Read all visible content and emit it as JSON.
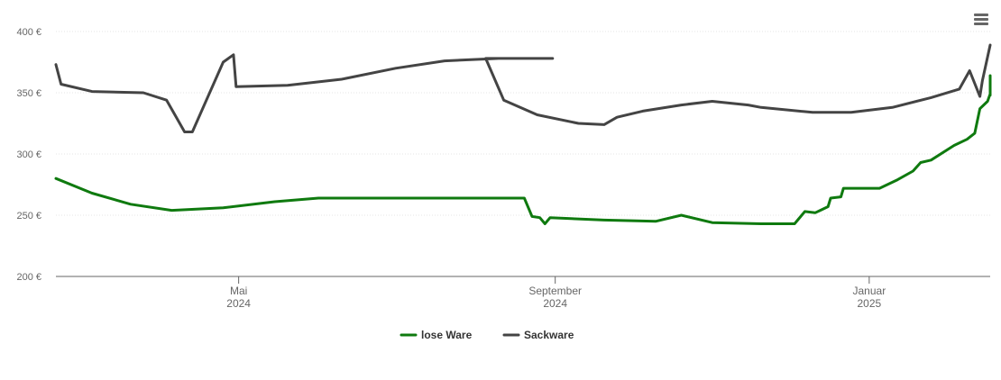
{
  "menu": {
    "icon": "hamburger-icon"
  },
  "chart_data": {
    "type": "line",
    "title": "",
    "xlabel": "",
    "ylabel": "",
    "ylim": [
      200,
      400
    ],
    "yticks": [
      {
        "value": 200,
        "label": "200 €"
      },
      {
        "value": 250,
        "label": "250 €"
      },
      {
        "value": 300,
        "label": "300 €"
      },
      {
        "value": 350,
        "label": "350 €"
      },
      {
        "value": 400,
        "label": "400 €"
      }
    ],
    "xrange": [
      "2024-02-20",
      "2025-02-17"
    ],
    "xticks": [
      {
        "date": "2024-05-01",
        "line1": "Mai",
        "line2": "2024"
      },
      {
        "date": "2024-09-01",
        "line1": "September",
        "line2": "2024"
      },
      {
        "date": "2025-01-01",
        "line1": "Januar",
        "line2": "2025"
      }
    ],
    "grid": true,
    "legend_position": "bottom-center",
    "series": [
      {
        "name": "lose Ware",
        "color": "#0f7a0f",
        "points": [
          [
            "2024-02-20",
            280
          ],
          [
            "2024-03-05",
            268
          ],
          [
            "2024-03-20",
            259
          ],
          [
            "2024-04-05",
            254
          ],
          [
            "2024-04-25",
            256
          ],
          [
            "2024-05-15",
            261
          ],
          [
            "2024-06-01",
            264
          ],
          [
            "2024-06-30",
            264
          ],
          [
            "2024-08-15",
            264
          ],
          [
            "2024-08-20",
            264
          ],
          [
            "2024-08-23",
            249
          ],
          [
            "2024-08-26",
            248
          ],
          [
            "2024-08-28",
            243
          ],
          [
            "2024-08-30",
            248
          ],
          [
            "2024-09-20",
            246
          ],
          [
            "2024-10-10",
            245
          ],
          [
            "2024-10-20",
            250
          ],
          [
            "2024-11-01",
            244
          ],
          [
            "2024-11-20",
            243
          ],
          [
            "2024-12-03",
            243
          ],
          [
            "2024-12-07",
            253
          ],
          [
            "2024-12-11",
            252
          ],
          [
            "2024-12-13",
            254
          ],
          [
            "2024-12-16",
            257
          ],
          [
            "2024-12-17",
            264
          ],
          [
            "2024-12-21",
            265
          ],
          [
            "2024-12-22",
            272
          ],
          [
            "2025-01-05",
            272
          ],
          [
            "2025-01-12",
            279
          ],
          [
            "2025-01-18",
            286
          ],
          [
            "2025-01-21",
            293
          ],
          [
            "2025-01-25",
            295
          ],
          [
            "2025-02-03",
            307
          ],
          [
            "2025-02-08",
            312
          ],
          [
            "2025-02-11",
            317
          ],
          [
            "2025-02-13",
            337
          ],
          [
            "2025-02-16",
            343
          ],
          [
            "2025-02-20",
            349
          ],
          [
            "2025-02-24",
            348
          ],
          [
            "2025-02-26",
            351
          ],
          [
            "2025-02-26",
            364
          ]
        ]
      },
      {
        "name": "Sackware",
        "color": "#444444",
        "points": [
          [
            "2024-02-20",
            373
          ],
          [
            "2024-02-22",
            357
          ],
          [
            "2024-03-05",
            351
          ],
          [
            "2024-03-25",
            350
          ],
          [
            "2024-04-03",
            344
          ],
          [
            "2024-04-10",
            318
          ],
          [
            "2024-04-13",
            318
          ],
          [
            "2024-04-25",
            375
          ],
          [
            "2024-04-29",
            381
          ],
          [
            "2024-04-30",
            355
          ],
          [
            "2024-05-20",
            356
          ],
          [
            "2024-06-10",
            361
          ],
          [
            "2024-07-01",
            370
          ],
          [
            "2024-07-20",
            376
          ],
          [
            "2024-08-10",
            378
          ],
          [
            "2024-08-25",
            378
          ],
          [
            "2024-08-31",
            378
          ],
          [
            "2024-08-05",
            378
          ],
          [
            "2024-08-12",
            344
          ],
          [
            "2024-08-25",
            332
          ],
          [
            "2024-09-10",
            325
          ],
          [
            "2024-09-20",
            324
          ],
          [
            "2024-09-25",
            330
          ],
          [
            "2024-10-05",
            335
          ],
          [
            "2024-10-20",
            340
          ],
          [
            "2024-11-01",
            343
          ],
          [
            "2024-11-15",
            340
          ],
          [
            "2024-11-20",
            338
          ],
          [
            "2024-12-10",
            334
          ],
          [
            "2024-12-25",
            334
          ],
          [
            "2025-01-10",
            338
          ],
          [
            "2025-01-25",
            346
          ],
          [
            "2025-02-05",
            353
          ],
          [
            "2025-02-09",
            368
          ],
          [
            "2025-02-13",
            347
          ],
          [
            "2025-02-14",
            360
          ],
          [
            "2025-02-20",
            389
          ],
          [
            "2025-02-26",
            389
          ]
        ]
      }
    ]
  }
}
